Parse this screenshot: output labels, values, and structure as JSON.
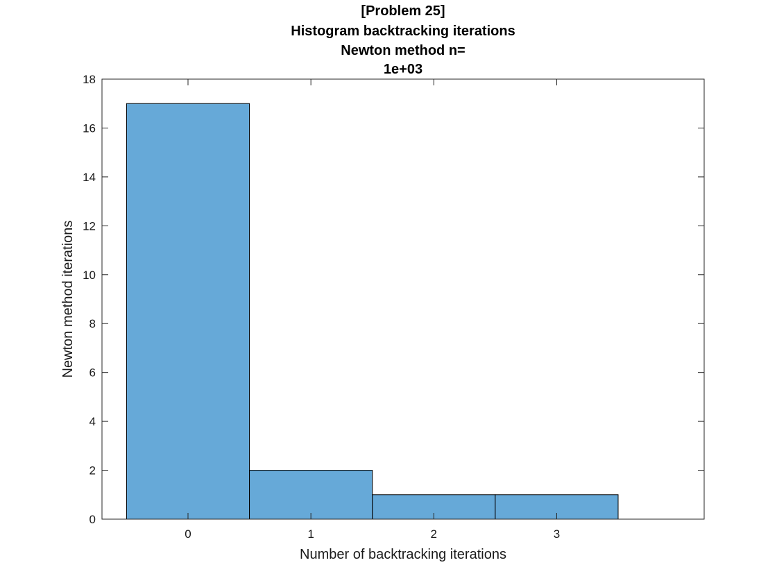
{
  "chart_data": {
    "type": "bar",
    "title": [
      "[Problem 25]",
      "Histogram backtracking iterations",
      "Newton method n=",
      "1e+03"
    ],
    "xlabel": "Number of backtracking iterations",
    "ylabel": "Newton method iterations",
    "categories": [
      "0",
      "1",
      "2",
      "3"
    ],
    "values": [
      17,
      2,
      1,
      1
    ],
    "bin_edges": [
      -0.5,
      0.5,
      1.5,
      2.5,
      3.5
    ],
    "xlim": [
      -0.7,
      4.2
    ],
    "ylim": [
      0,
      18
    ],
    "yticks": [
      0,
      2,
      4,
      6,
      8,
      10,
      12,
      14,
      16,
      18
    ],
    "xticks": [
      0,
      1,
      2,
      3
    ],
    "grid": false,
    "bar_color": "#66a9d8",
    "edge_color": "#000000"
  }
}
